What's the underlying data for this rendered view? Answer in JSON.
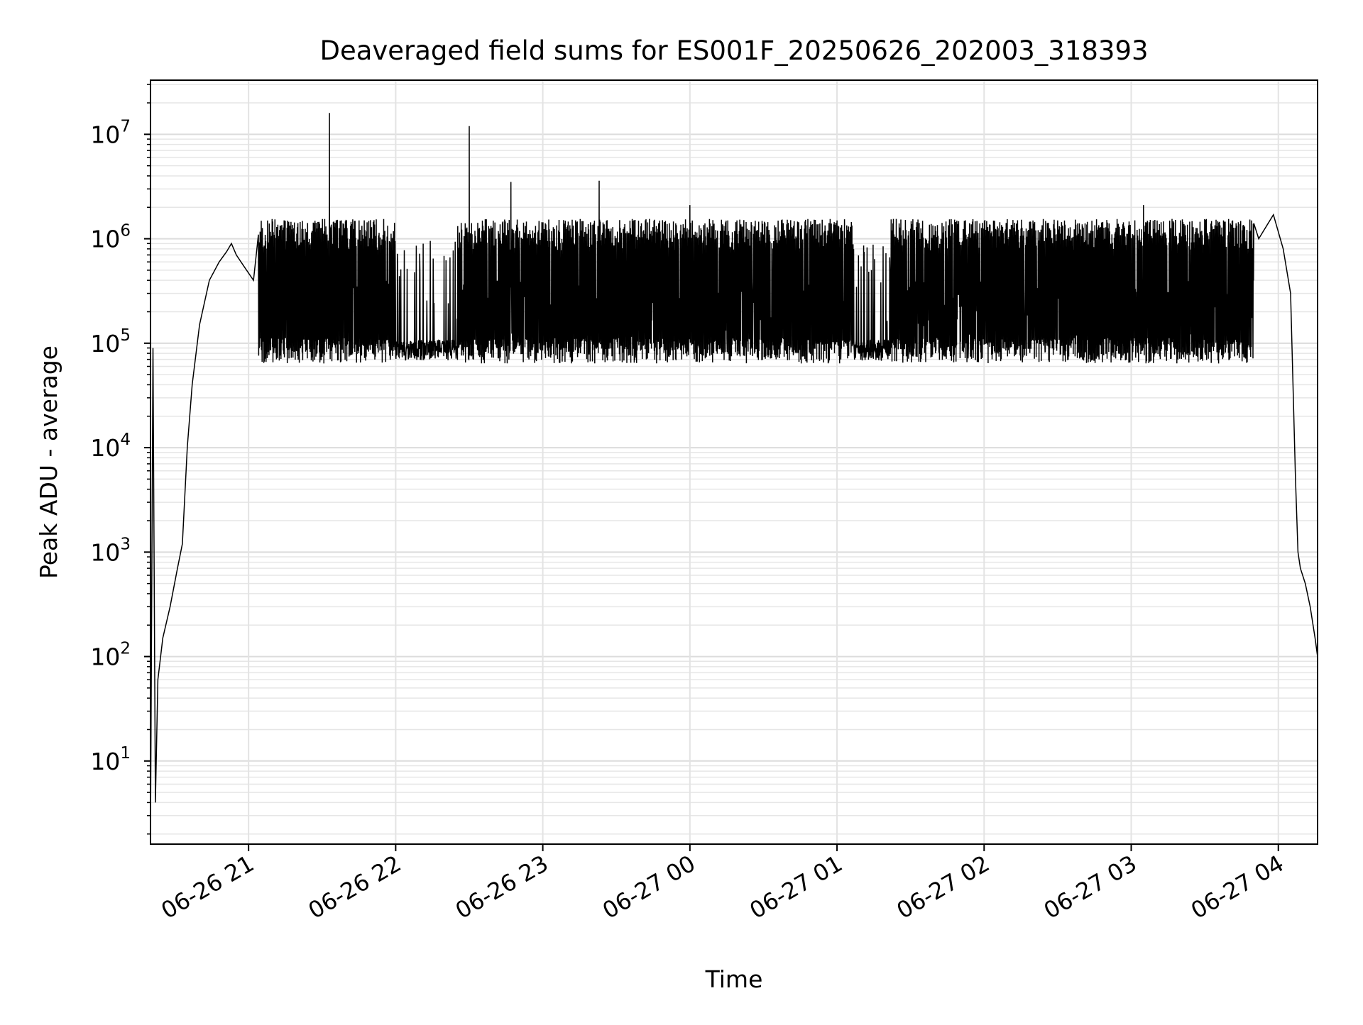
{
  "chart_data": {
    "type": "line",
    "title": "Deaveraged field sums for ES001F_20250626_202003_318393",
    "xlabel": "Time",
    "ylabel": "Peak ADU - average",
    "xscale": "time",
    "yscale": "log",
    "xlim": [
      "2025-06-26 20:20",
      "2025-06-27 04:16"
    ],
    "ylim": [
      1.6,
      33000000
    ],
    "x_ticks": [
      "06-26 21",
      "06-26 22",
      "06-26 23",
      "06-27 00",
      "06-27 01",
      "06-27 02",
      "06-27 03",
      "06-27 04"
    ],
    "y_ticks": [
      {
        "base": "10",
        "exp": "1"
      },
      {
        "base": "10",
        "exp": "2"
      },
      {
        "base": "10",
        "exp": "3"
      },
      {
        "base": "10",
        "exp": "4"
      },
      {
        "base": "10",
        "exp": "5"
      },
      {
        "base": "10",
        "exp": "6"
      },
      {
        "base": "10",
        "exp": "7"
      }
    ],
    "grid": true,
    "legend": "none",
    "line_color": "#000000",
    "series": [
      {
        "points": [
          [
            "2025-06-26 20:20",
            2
          ],
          [
            "2025-06-26 20:21",
            90000
          ],
          [
            "2025-06-26 20:22",
            4
          ],
          [
            "2025-06-26 20:23",
            60
          ],
          [
            "2025-06-26 20:25",
            150
          ],
          [
            "2025-06-26 20:28",
            300
          ],
          [
            "2025-06-26 20:31",
            700
          ],
          [
            "2025-06-26 20:33",
            1200
          ],
          [
            "2025-06-26 20:35",
            10000
          ],
          [
            "2025-06-26 20:37",
            40000
          ],
          [
            "2025-06-26 20:40",
            150000
          ],
          [
            "2025-06-26 20:44",
            400000
          ],
          [
            "2025-06-26 20:48",
            600000
          ],
          [
            "2025-06-26 20:51",
            750000
          ],
          [
            "2025-06-26 20:53",
            900000
          ],
          [
            "2025-06-26 20:55",
            700000
          ],
          [
            "2025-06-26 20:58",
            550000
          ],
          [
            "2025-06-26 21:02",
            400000
          ],
          [
            "2025-06-26 21:06",
            300000
          ],
          [
            "2025-06-26 21:10",
            200000
          ],
          [
            "2025-06-26 21:14",
            150000
          ],
          [
            "2025-06-26 21:33",
            16000000
          ],
          [
            "2025-06-26 22:30",
            12000000
          ],
          [
            "2025-06-26 22:47",
            3500000
          ],
          [
            "2025-06-26 23:23",
            3600000
          ],
          [
            "2025-06-27 00:00",
            2100000
          ],
          [
            "2025-06-27 01:00",
            1500000
          ],
          [
            "2025-06-27 01:10",
            75000
          ],
          [
            "2025-06-27 01:20",
            80000
          ],
          [
            "2025-06-27 02:30",
            1500000
          ],
          [
            "2025-06-27 02:45",
            70000
          ],
          [
            "2025-06-27 03:05",
            2100000
          ],
          [
            "2025-06-27 03:10",
            80000
          ],
          [
            "2025-06-27 03:30",
            150000
          ],
          [
            "2025-06-27 03:45",
            400000
          ],
          [
            "2025-06-27 03:52",
            1000000
          ],
          [
            "2025-06-27 03:58",
            1700000
          ],
          [
            "2025-06-27 04:02",
            800000
          ],
          [
            "2025-06-27 04:05",
            300000
          ],
          [
            "2025-06-27 04:07",
            5000
          ],
          [
            "2025-06-27 04:08",
            1000
          ],
          [
            "2025-06-27 04:09",
            700
          ],
          [
            "2025-06-27 04:11",
            500
          ],
          [
            "2025-06-27 04:13",
            300
          ],
          [
            "2025-06-27 04:15",
            150
          ],
          [
            "2025-06-27 04:16",
            100
          ]
        ],
        "noisy_band": {
          "from": "2025-06-26 21:04",
          "to": "2025-06-27 03:50",
          "floor": 80000,
          "ceiling": 1550000,
          "quiet_stretches": [
            [
              "2025-06-26 22:00",
              "2025-06-26 22:25"
            ],
            [
              "2025-06-27 01:07",
              "2025-06-27 01:22"
            ]
          ]
        }
      }
    ]
  }
}
